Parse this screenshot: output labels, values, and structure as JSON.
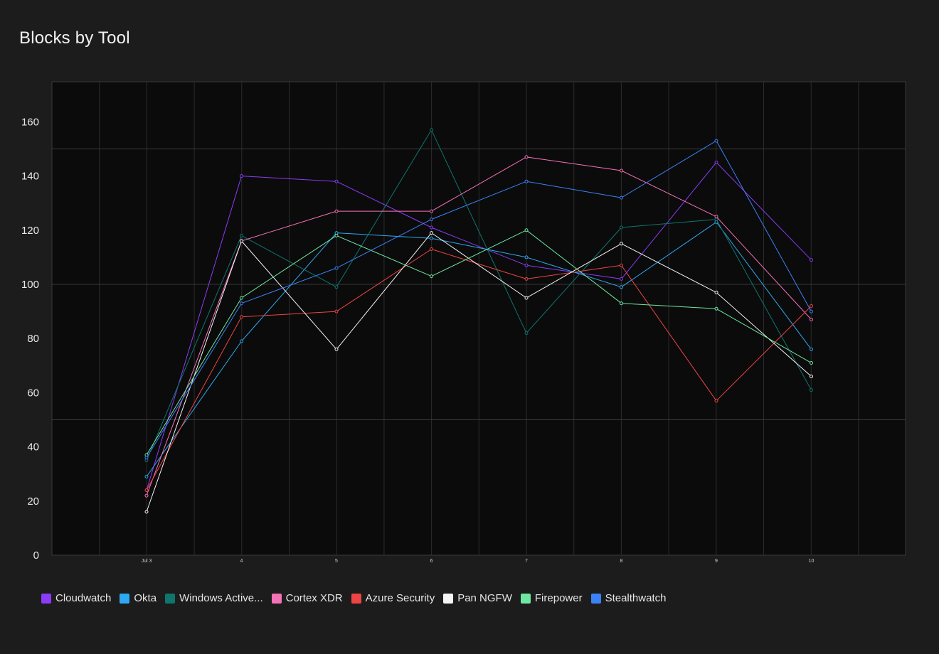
{
  "page": {
    "title": "Blocks by Tool"
  },
  "chart_data": {
    "type": "line",
    "title": "Blocks by Tool",
    "xlabel": "",
    "ylabel": "",
    "categories": [
      "Jul 3",
      "4",
      "5",
      "6",
      "7",
      "8",
      "9",
      "10"
    ],
    "ylim": [
      0,
      173
    ],
    "y_ticks": [
      0,
      20,
      40,
      60,
      80,
      100,
      120,
      140,
      160
    ],
    "grid": true,
    "legend_position": "bottom-left",
    "series": [
      {
        "name": "Cloudwatch",
        "color": "#8b3cf7",
        "values": [
          24,
          140,
          138,
          121,
          107,
          102,
          145,
          109
        ]
      },
      {
        "name": "Okta",
        "color": "#2ea8f0",
        "values": [
          29,
          79,
          119,
          117,
          110,
          99,
          123,
          76
        ]
      },
      {
        "name": "Windows Active...",
        "color": "#0f766e",
        "values": [
          35,
          118,
          99,
          157,
          82,
          121,
          124,
          61
        ]
      },
      {
        "name": "Cortex XDR",
        "color": "#f472b6",
        "values": [
          22,
          116,
          127,
          127,
          147,
          142,
          125,
          87
        ]
      },
      {
        "name": "Azure Security",
        "color": "#ef4444",
        "values": [
          24,
          88,
          90,
          113,
          102,
          107,
          57,
          92
        ]
      },
      {
        "name": "Pan NGFW",
        "color": "#f5f5f5",
        "values": [
          16,
          116,
          76,
          119,
          95,
          115,
          97,
          66
        ]
      },
      {
        "name": "Firepower",
        "color": "#6ee7a0",
        "values": [
          37,
          95,
          118,
          103,
          120,
          93,
          91,
          71
        ]
      },
      {
        "name": "Stealthwatch",
        "color": "#3b82f6",
        "values": [
          36,
          93,
          106,
          124,
          138,
          132,
          153,
          90
        ]
      }
    ]
  }
}
